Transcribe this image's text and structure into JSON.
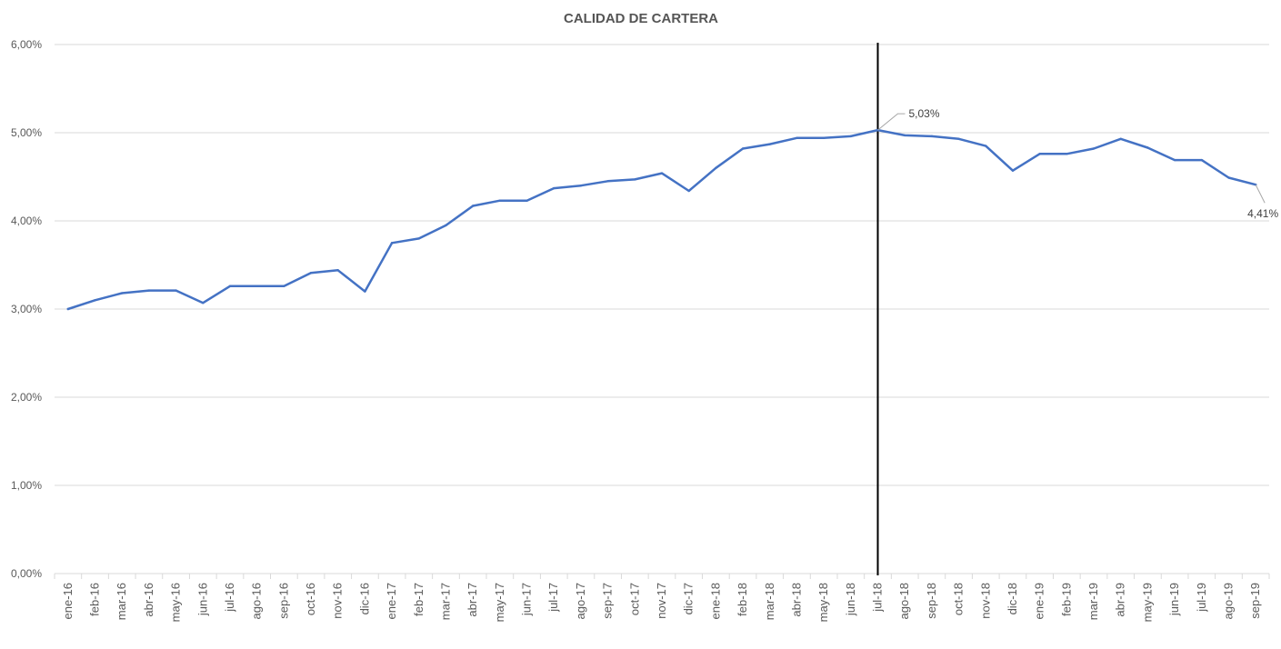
{
  "chart_data": {
    "type": "line",
    "title": "CALIDAD DE CARTERA",
    "xlabel": "",
    "ylabel": "",
    "ylim": [
      0,
      6
    ],
    "y_ticks": [
      0,
      1,
      2,
      3,
      4,
      5,
      6
    ],
    "y_tick_labels": [
      "0,00%",
      "1,00%",
      "2,00%",
      "3,00%",
      "4,00%",
      "5,00%",
      "6,00%"
    ],
    "grid": true,
    "legend": "none",
    "categories": [
      "ene-16",
      "feb-16",
      "mar-16",
      "abr-16",
      "may-16",
      "jun-16",
      "jul-16",
      "ago-16",
      "sep-16",
      "oct-16",
      "nov-16",
      "dic-16",
      "ene-17",
      "feb-17",
      "mar-17",
      "abr-17",
      "may-17",
      "jun-17",
      "jul-17",
      "ago-17",
      "sep-17",
      "oct-17",
      "nov-17",
      "dic-17",
      "ene-18",
      "feb-18",
      "mar-18",
      "abr-18",
      "may-18",
      "jun-18",
      "jul-18",
      "ago-18",
      "sep-18",
      "oct-18",
      "nov-18",
      "dic-18",
      "ene-19",
      "feb-19",
      "mar-19",
      "abr-19",
      "may-19",
      "jun-19",
      "jul-19",
      "ago-19",
      "sep-19"
    ],
    "series": [
      {
        "values": [
          3.0,
          3.1,
          3.18,
          3.21,
          3.21,
          3.07,
          3.26,
          3.26,
          3.26,
          3.41,
          3.44,
          3.2,
          3.75,
          3.8,
          3.95,
          4.17,
          4.23,
          4.23,
          4.37,
          4.4,
          4.45,
          4.47,
          4.54,
          4.34,
          4.6,
          4.82,
          4.87,
          4.94,
          4.94,
          4.96,
          5.03,
          4.97,
          4.96,
          4.93,
          4.85,
          4.57,
          4.76,
          4.76,
          4.82,
          4.93,
          4.83,
          4.69,
          4.69,
          4.49,
          4.41
        ],
        "color": "#4472c4"
      }
    ],
    "annotations": [
      {
        "category": "jul-18",
        "value": 5.03,
        "label": "5,03%"
      },
      {
        "category": "sep-19",
        "value": 4.41,
        "label": "4,41%"
      }
    ],
    "vertical_marker": {
      "category": "jul-18",
      "color": "#000000"
    }
  }
}
